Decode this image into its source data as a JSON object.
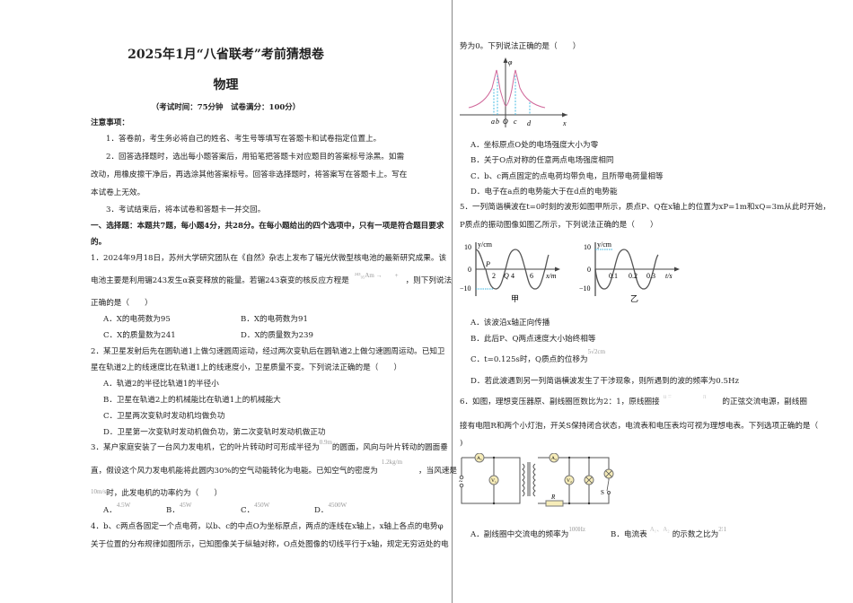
{
  "header": {
    "title": "2025年1月“八省联考”考前猜想卷",
    "subject": "物理",
    "exam_info": "（考试时间：75分钟　试卷满分：100分）"
  },
  "notice": {
    "heading": "注意事项：",
    "lines": [
      "1．答卷前，考生务必将自己的姓名、考生号等填写在答题卡和试卷指定位置上。",
      "2．回答选择题时，选出每小题答案后，用铅笔把答题卡对应题目的答案标号涂黑。如需",
      "改动，用橡皮擦干净后，再选涂其他答案标号。回答非选择题时，将答案写在答题卡上。写在",
      "本试卷上无效。",
      "3．考试结束后，将本试卷和答题卡一并交回。"
    ]
  },
  "section1": {
    "lines": [
      "一、选择题：本题共7题，每小题4分，共28分。在每小题给出的四个选项中，只有一项是符合题目要求",
      "的。"
    ]
  },
  "q1": {
    "lines": [
      "1．2024年9月18日，苏州大学研究团队在《自然》杂志上发布了辐光伏微型核电池的最新研究成果。该",
      "电池主要是利用镅243发生α衰变释放的能量。若镅243衰变的核反应方程是",
      "，则下列说法",
      "正确的是（　　）"
    ],
    "formula": "²⁴³₉₅Am →　　+",
    "options": [
      "A．X的电荷数为95",
      "B．X的电荷数为91",
      "C．X的质量数为241",
      "D．X的质量数为239"
    ]
  },
  "q2": {
    "lines": [
      "2．某卫星发射后先在圆轨道1上做匀速圆周运动，经过两次变轨后在圆轨道2上做匀速圆周运动。已知卫",
      "星在轨道2上的线速度比在轨道1上的线速度小，卫星质量不变。下列说法正确的是（　　）"
    ],
    "options": [
      "A．轨道2的半径比轨道1的半径小",
      "B．卫星在轨道2上的机械能比在轨道1上的机械能大",
      "C．卫星两次变轨时发动机均做负功",
      "D．卫星第一次变轨时发动机做负功，第二次变轨时发动机做正功"
    ]
  },
  "q3": {
    "lines": [
      "3．某户家庭安装了一台风力发电机，它的叶片转动时可形成半径为",
      "的圆面，风向与叶片转动的圆面垂",
      "直，假设这个风力发电机能将此圆内30%的空气动能转化为电能。已知空气的密度为",
      "，当风速是",
      "时，此发电机的功率约为（　　）"
    ],
    "radius": "0.9m",
    "density": "1.2kg/m",
    "speed": "10m/s",
    "options": [
      "A．",
      "B．",
      "C．",
      "D．"
    ],
    "values": [
      "4.5W",
      "45W",
      "450W",
      "4500W"
    ]
  },
  "q4": {
    "lines": [
      "4．b、c两点各固定一个点电荷，以b、c的中点O为坐标原点，两点的连线在x轴上，x轴上各点的电势φ",
      "关于位置的分布规律如图所示，已知图像关于纵轴对称，O点处图像的切线平行于x轴，规定无穷远处的电",
      "势为0。下列说法正确的是（　　）"
    ],
    "figure": {
      "y_label": "φ",
      "x_label": "x",
      "points": [
        "a",
        "b",
        "O",
        "c",
        "d"
      ]
    },
    "options": [
      "A．坐标原点O处的电场强度大小为零",
      "B．关于O点对称的任意两点电场强度相同",
      "C．b、c两点固定的点电荷均带负电，且所带电荷量相等",
      "D．电子在a点的电势能大于在d点的电势能"
    ]
  },
  "q5": {
    "lines": [
      "5．一列简谐横波在t=0时刻的波形如图甲所示，质点P、Q在x轴上的位置为xP=1m和xQ=3m从此时开始，",
      "P质点的振动图像如图乙所示，下列说法正确的是（　　）"
    ],
    "fig_a": {
      "y_label": "y/cm",
      "x_label": "x/m",
      "y_ticks": [
        "10",
        "0",
        "−10"
      ],
      "x_ticks": [
        "2",
        "4",
        "6"
      ],
      "points": [
        "P",
        "Q"
      ],
      "caption": "甲"
    },
    "fig_b": {
      "y_label": "y/cm",
      "x_label": "t/s",
      "y_ticks": [
        "10",
        "0",
        "−10"
      ],
      "x_ticks": [
        "0.1",
        "0.2",
        "0.3"
      ],
      "caption": "乙"
    },
    "options": [
      "A．该波沿x轴正向传播",
      "B．此后P、Q两点速度大小始终相等",
      "C．t=0.125s时，Q质点的位移为",
      "D．若此波遇到另一列简谐横波发生了干涉现象，则所遇到的波的频率为0.5Hz"
    ],
    "c_value": "5√2cm"
  },
  "q6": {
    "lines": [
      "6．如图，理想变压器原、副线圈匝数比为2：1，原线圈接",
      "的正弦交流电源，副线圈",
      "接有电阻R和两个小灯泡，开关S保持闭合状态，电流表和电压表均可视为理想电表。下列选项正确的是（",
      ")"
    ],
    "formula": "u =　　　　　π",
    "circuit": {
      "a1": "A₁",
      "a2": "A₂",
      "v1": "V₁",
      "v2": "V₂",
      "r": "R",
      "s": "S",
      "source": "~"
    },
    "options": [
      "A．副线圈中交流电的频率为",
      "B．电流表",
      "的示数之比为"
    ],
    "freq": "100Hz",
    "meters": "A₁、A₂",
    "ratio": "2∶1"
  }
}
